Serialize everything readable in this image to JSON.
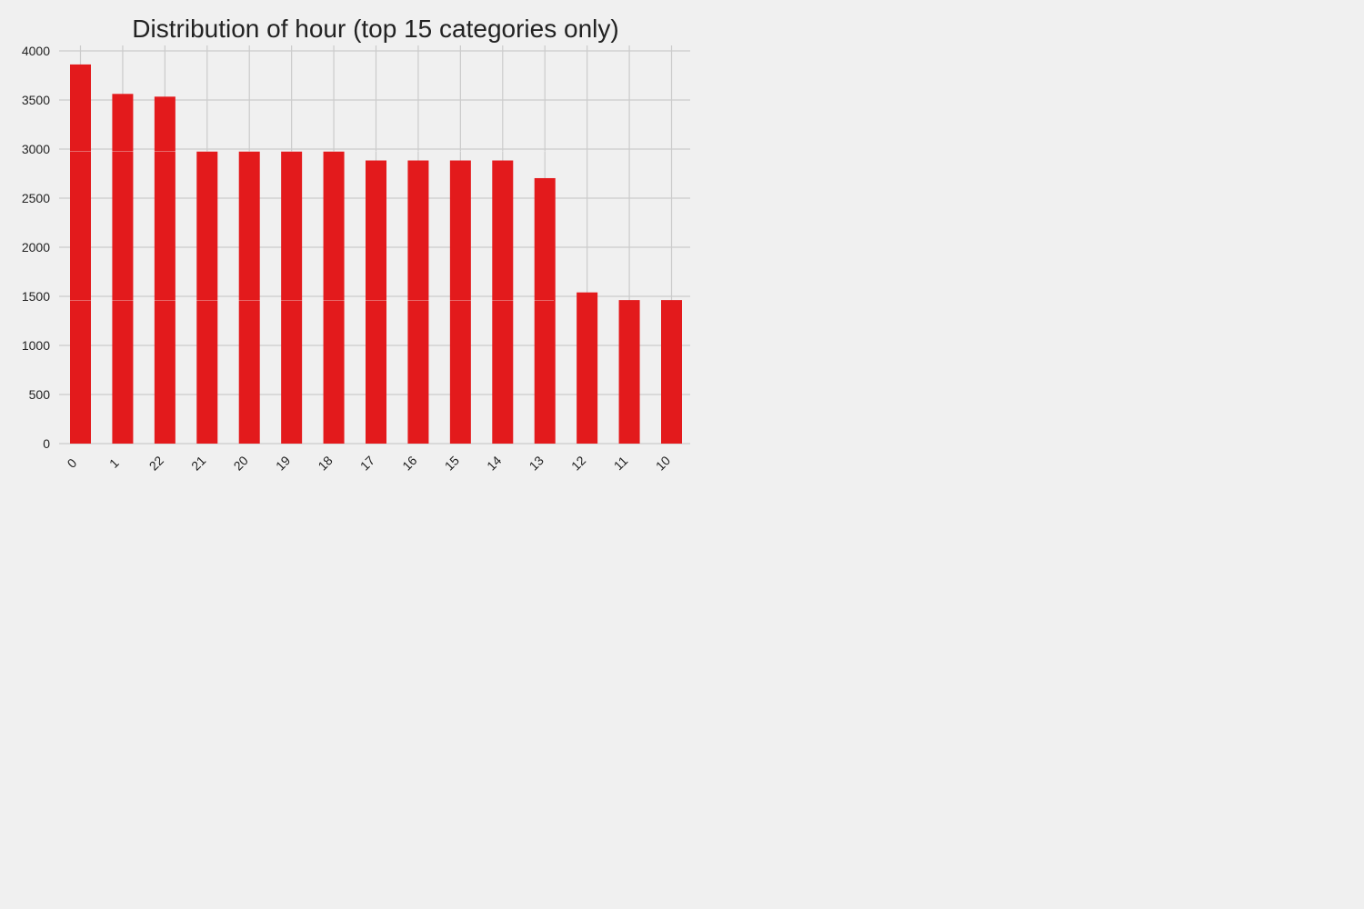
{
  "chart_data": {
    "type": "bar",
    "title": "Distribution of hour (top 15 categories only)",
    "xlabel": "",
    "ylabel": "",
    "categories": [
      "0",
      "1",
      "22",
      "21",
      "20",
      "19",
      "18",
      "17",
      "16",
      "15",
      "14",
      "13",
      "12",
      "11",
      "10"
    ],
    "values": [
      3862,
      3562,
      3534,
      2976,
      2976,
      2976,
      2976,
      2884,
      2884,
      2884,
      2884,
      2704,
      1540,
      1462,
      1462
    ],
    "ylim": [
      0,
      4000
    ],
    "yticks": [
      0,
      500,
      1000,
      1500,
      2000,
      2500,
      3000,
      3500,
      4000
    ],
    "grid": true,
    "legend": "none",
    "colors": {
      "bar": "#e31a1c",
      "background": "#f0f0f0",
      "grid": "#cbcbcb",
      "text": "#222222"
    }
  }
}
